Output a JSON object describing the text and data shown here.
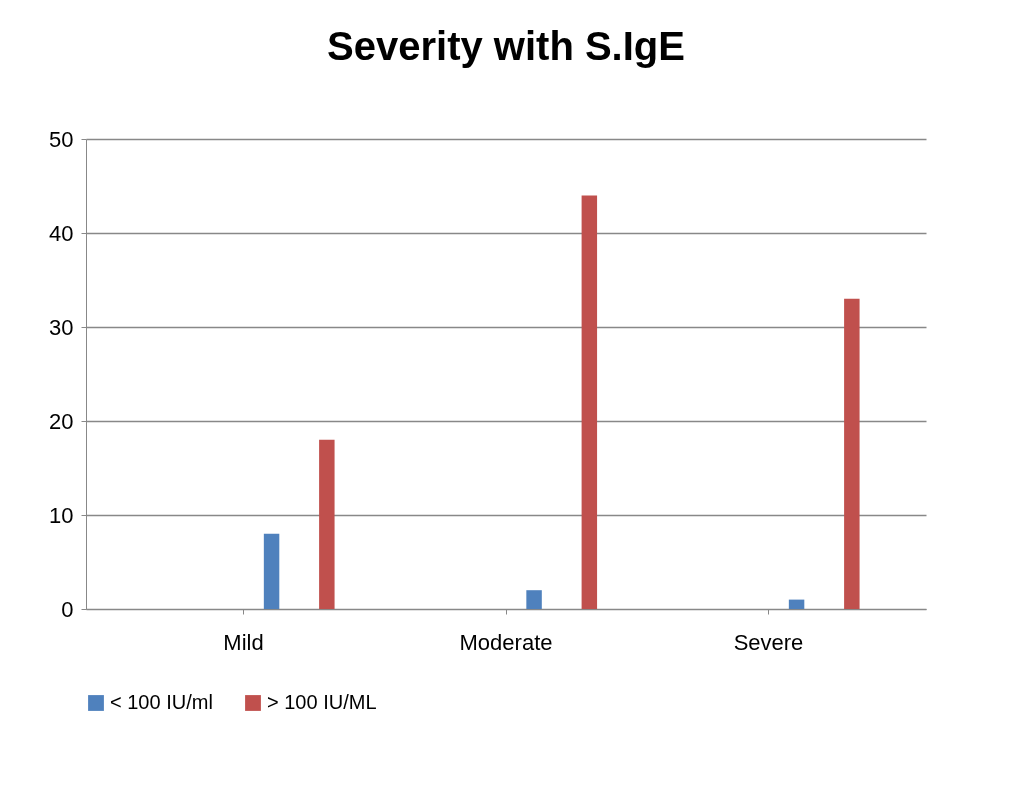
{
  "chart_data": {
    "type": "bar",
    "title": "Severity with S.IgE",
    "categories": [
      "Mild",
      "Moderate",
      "Severe"
    ],
    "series": [
      {
        "name": "< 100 IU/ml",
        "color": "#4f81bd",
        "values": [
          8,
          2,
          1
        ]
      },
      {
        "name": "> 100 IU/ML",
        "color": "#c0504d",
        "values": [
          18,
          44,
          33
        ]
      }
    ],
    "ylim": [
      0,
      50
    ],
    "yticks": [
      0,
      10,
      20,
      30,
      40,
      50
    ],
    "grid": "y",
    "legend": "bottom"
  }
}
